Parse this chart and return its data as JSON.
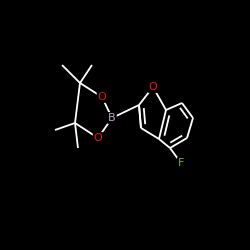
{
  "background_color": "#000000",
  "bond_color": "#ffffff",
  "atom_colors": {
    "B": "#c0a0c0",
    "O": "#ee1111",
    "F": "#70bb10"
  },
  "figsize": [
    2.5,
    2.5
  ],
  "dpi": 100
}
